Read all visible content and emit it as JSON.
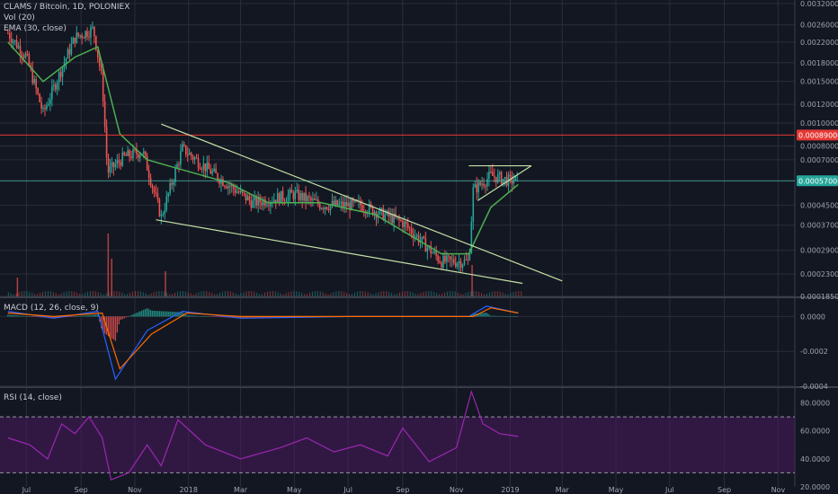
{
  "colors": {
    "background": "#131722",
    "grid": "#2a2e39",
    "up": "#26a69a",
    "down": "#ef5350",
    "ema": "#4caf50",
    "trendline": "#c5e1a5",
    "resistance": "#e53935",
    "current_line": "#4db6ac",
    "macd_line": "#2962ff",
    "signal_line": "#ff6d00",
    "rsi_line": "#9c27b0",
    "rsi_band": "#4a1a5e"
  },
  "main_pane": {
    "title": "CLAMS / Bitcoin, 1D, POLONIEX",
    "vol_label": "Vol (20)",
    "ema_label": "EMA (30, close)",
    "y_ticks": [
      "0.00320000",
      "0.00260000",
      "0.00220000",
      "0.00180000",
      "0.00150000",
      "0.00120000",
      "0.00100000",
      "0.00080000",
      "0.00070000",
      "0.00057000",
      "0.00045000",
      "0.00037000",
      "0.00029000",
      "0.00023000",
      "0.00018500"
    ],
    "resistance_tag": "0.00089000",
    "current_tag": "0.00057000"
  },
  "macd_pane": {
    "label": "MACD (12, 26, close, 9)",
    "y_ticks": [
      "0.0000",
      "-0.0002",
      "-0.0004"
    ]
  },
  "rsi_pane": {
    "label": "RSI (14, close)",
    "y_ticks": [
      "80.0000",
      "60.0000",
      "40.0000",
      "20.0000"
    ]
  },
  "x_axis": {
    "ticks": [
      "Jul",
      "Sep",
      "Nov",
      "2018",
      "Mar",
      "May",
      "Jul",
      "Sep",
      "Nov",
      "2019",
      "Mar",
      "May",
      "Jul",
      "Sep",
      "Nov"
    ]
  },
  "chart_data": {
    "type": "candlestick",
    "symbol": "CLAMS / Bitcoin",
    "interval": "1D",
    "exchange": "POLONIEX",
    "x_range": [
      "2017-06",
      "2019-11"
    ],
    "price_ylim": [
      0.000185,
      0.0032
    ],
    "log_scale": true,
    "resistance_level": 0.00089,
    "last_price": 0.00057,
    "close_path": [
      {
        "x": "2017-06-10",
        "y": 0.0024
      },
      {
        "x": "2017-07-01",
        "y": 0.0019
      },
      {
        "x": "2017-07-20",
        "y": 0.0011
      },
      {
        "x": "2017-08-10",
        "y": 0.0017
      },
      {
        "x": "2017-08-25",
        "y": 0.0023
      },
      {
        "x": "2017-09-15",
        "y": 0.0025
      },
      {
        "x": "2017-09-25",
        "y": 0.0015
      },
      {
        "x": "2017-10-01",
        "y": 0.00062
      },
      {
        "x": "2017-10-20",
        "y": 0.00072
      },
      {
        "x": "2017-11-10",
        "y": 0.00076
      },
      {
        "x": "2017-12-01",
        "y": 0.0004
      },
      {
        "x": "2017-12-25",
        "y": 0.00078
      },
      {
        "x": "2018-02-01",
        "y": 0.0006
      },
      {
        "x": "2018-03-15",
        "y": 0.00046
      },
      {
        "x": "2018-05-01",
        "y": 0.0005
      },
      {
        "x": "2018-06-01",
        "y": 0.00045
      },
      {
        "x": "2018-07-15",
        "y": 0.00045
      },
      {
        "x": "2018-09-01",
        "y": 0.00038
      },
      {
        "x": "2018-10-15",
        "y": 0.00026
      },
      {
        "x": "2018-11-15",
        "y": 0.00026
      },
      {
        "x": "2018-11-20",
        "y": 0.00052
      },
      {
        "x": "2018-12-10",
        "y": 0.0006
      },
      {
        "x": "2019-01-01",
        "y": 0.00057
      },
      {
        "x": "2019-01-10",
        "y": 0.00058
      }
    ],
    "ema_path": [
      {
        "x": "2017-06-10",
        "y": 0.0022
      },
      {
        "x": "2017-07-20",
        "y": 0.0015
      },
      {
        "x": "2017-08-25",
        "y": 0.0019
      },
      {
        "x": "2017-09-20",
        "y": 0.0021
      },
      {
        "x": "2017-10-15",
        "y": 0.0009
      },
      {
        "x": "2017-11-15",
        "y": 0.0007
      },
      {
        "x": "2017-12-15",
        "y": 0.00065
      },
      {
        "x": "2018-02-15",
        "y": 0.00056
      },
      {
        "x": "2018-04-01",
        "y": 0.00046
      },
      {
        "x": "2018-06-01",
        "y": 0.00046
      },
      {
        "x": "2018-08-01",
        "y": 0.00041
      },
      {
        "x": "2018-10-15",
        "y": 0.00028
      },
      {
        "x": "2018-11-15",
        "y": 0.00028
      },
      {
        "x": "2018-12-10",
        "y": 0.00044
      },
      {
        "x": "2019-01-10",
        "y": 0.00055
      }
    ],
    "trendlines": [
      {
        "name": "falling wedge upper",
        "from": {
          "x": "2017-12-01",
          "y": 0.00099
        },
        "to": {
          "x": "2019-03-01",
          "y": 0.000215
        }
      },
      {
        "name": "falling wedge lower",
        "from": {
          "x": "2017-11-25",
          "y": 0.00039
        },
        "to": {
          "x": "2019-01-15",
          "y": 0.00021
        }
      },
      {
        "name": "flat top",
        "from": {
          "x": "2018-11-15",
          "y": 0.00066
        },
        "to": {
          "x": "2019-01-25",
          "y": 0.00066
        }
      },
      {
        "name": "rising support",
        "from": {
          "x": "2018-11-25",
          "y": 0.00047
        },
        "to": {
          "x": "2019-01-25",
          "y": 0.00066
        }
      }
    ],
    "macd_ylim": [
      -0.0004,
      0.0001
    ],
    "macd_path": [
      {
        "x": "2017-06-10",
        "y": 3e-05
      },
      {
        "x": "2017-08-01",
        "y": -1e-05
      },
      {
        "x": "2017-09-20",
        "y": 3e-05
      },
      {
        "x": "2017-10-10",
        "y": -0.00036
      },
      {
        "x": "2017-11-15",
        "y": -8e-05
      },
      {
        "x": "2017-12-25",
        "y": 3e-05
      },
      {
        "x": "2018-03-01",
        "y": -1e-05
      },
      {
        "x": "2018-07-01",
        "y": 0.0
      },
      {
        "x": "2018-11-15",
        "y": 0.0
      },
      {
        "x": "2018-12-05",
        "y": 6e-05
      },
      {
        "x": "2019-01-10",
        "y": 2e-05
      }
    ],
    "signal_path": [
      {
        "x": "2017-06-10",
        "y": 2e-05
      },
      {
        "x": "2017-08-01",
        "y": 0.0
      },
      {
        "x": "2017-09-25",
        "y": 2e-05
      },
      {
        "x": "2017-10-15",
        "y": -0.0003
      },
      {
        "x": "2017-11-20",
        "y": -0.0001
      },
      {
        "x": "2017-12-30",
        "y": 2e-05
      },
      {
        "x": "2018-03-01",
        "y": 0.0
      },
      {
        "x": "2018-11-20",
        "y": 0.0
      },
      {
        "x": "2018-12-10",
        "y": 5e-05
      },
      {
        "x": "2019-01-10",
        "y": 2e-05
      }
    ],
    "rsi_ylim": [
      20,
      90
    ],
    "rsi_bands": [
      30,
      70
    ],
    "rsi_path": [
      {
        "x": "2017-06-10",
        "y": 55
      },
      {
        "x": "2017-07-05",
        "y": 50
      },
      {
        "x": "2017-07-25",
        "y": 40
      },
      {
        "x": "2017-08-10",
        "y": 65
      },
      {
        "x": "2017-08-25",
        "y": 58
      },
      {
        "x": "2017-09-10",
        "y": 70
      },
      {
        "x": "2017-09-25",
        "y": 55
      },
      {
        "x": "2017-10-05",
        "y": 25
      },
      {
        "x": "2017-10-25",
        "y": 30
      },
      {
        "x": "2017-11-15",
        "y": 50
      },
      {
        "x": "2017-12-01",
        "y": 35
      },
      {
        "x": "2017-12-20",
        "y": 68
      },
      {
        "x": "2018-01-20",
        "y": 50
      },
      {
        "x": "2018-03-01",
        "y": 40
      },
      {
        "x": "2018-04-15",
        "y": 48
      },
      {
        "x": "2018-05-15",
        "y": 55
      },
      {
        "x": "2018-06-15",
        "y": 45
      },
      {
        "x": "2018-07-15",
        "y": 50
      },
      {
        "x": "2018-08-15",
        "y": 42
      },
      {
        "x": "2018-09-01",
        "y": 62
      },
      {
        "x": "2018-10-01",
        "y": 38
      },
      {
        "x": "2018-11-01",
        "y": 48
      },
      {
        "x": "2018-11-18",
        "y": 88
      },
      {
        "x": "2018-12-01",
        "y": 65
      },
      {
        "x": "2018-12-20",
        "y": 58
      },
      {
        "x": "2019-01-10",
        "y": 56
      }
    ],
    "volume_spikes": [
      {
        "x": "2017-06-20",
        "v": 0.3
      },
      {
        "x": "2017-10-01",
        "v": 1.0
      },
      {
        "x": "2017-10-05",
        "v": 0.6
      },
      {
        "x": "2017-12-05",
        "v": 0.4
      },
      {
        "x": "2018-11-18",
        "v": 0.5
      }
    ]
  }
}
